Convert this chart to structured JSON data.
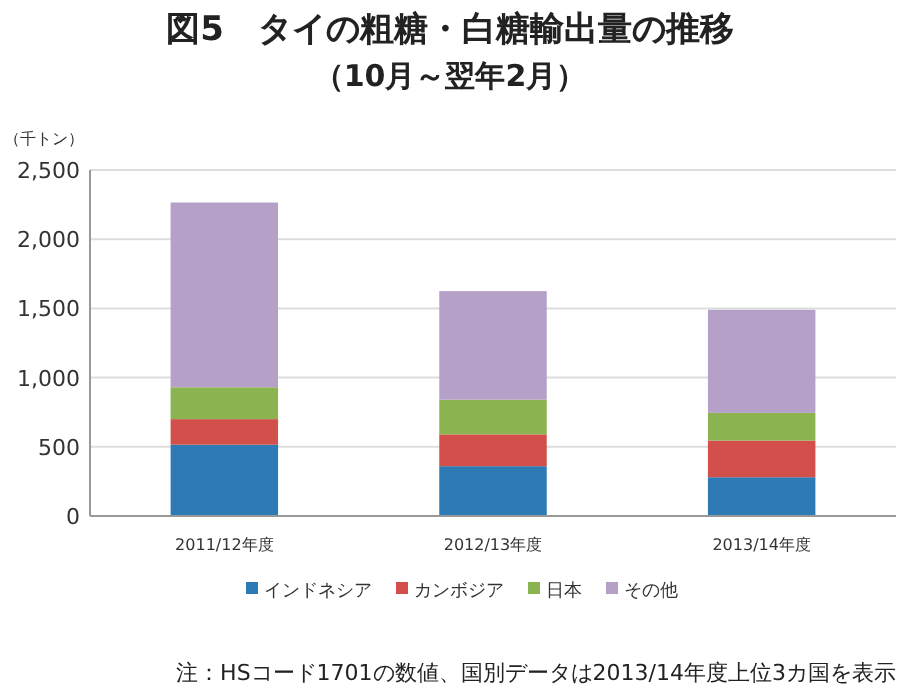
{
  "chart_data": {
    "type": "bar",
    "title": "図5　タイの粗糖・白糖輸出量の推移",
    "subtitle": "（10月～翌年2月）",
    "ylabel": "（千トン）",
    "categories": [
      "2011/12年度",
      "2012/13年度",
      "2013/14年度"
    ],
    "stacked": true,
    "series": [
      {
        "name": "インドネシア",
        "color": "#2e7ab5",
        "values": [
          515,
          360,
          280
        ]
      },
      {
        "name": "カンボジア",
        "color": "#d34f4b",
        "values": [
          185,
          230,
          265
        ]
      },
      {
        "name": "日本",
        "color": "#8bb350",
        "values": [
          230,
          250,
          200
        ]
      },
      {
        "name": "その他",
        "color": "#b5a0c8",
        "values": [
          1335,
          785,
          745
        ]
      }
    ],
    "ylim": [
      0,
      2500
    ],
    "yticks": [
      0,
      {
        "value": 500,
        "label": "500"
      },
      {
        "value": 1000,
        "label": "1,000"
      },
      {
        "value": 1500,
        "label": "1,500"
      },
      {
        "value": 2000,
        "label": "2,000"
      },
      {
        "value": 2500,
        "label": "2,500"
      }
    ],
    "grid": "y",
    "legend": "bottom",
    "annotations": [
      "注：HSコード1701の数値、国別データは2013/14年度上位3カ国を表示"
    ]
  }
}
